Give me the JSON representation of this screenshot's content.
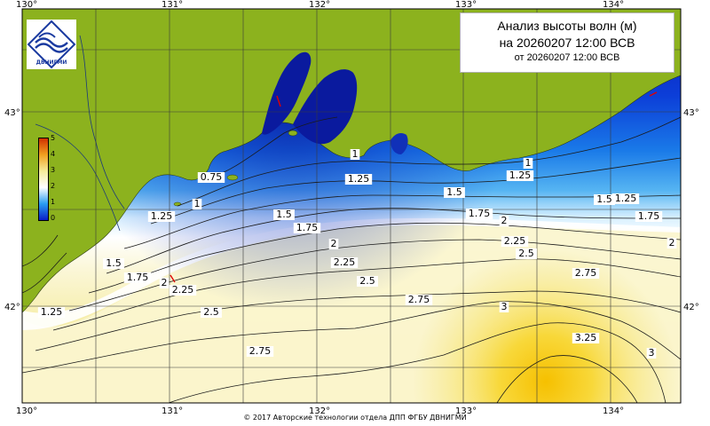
{
  "title": {
    "line1": "Анализ высоты волн (м)",
    "line2": "на 20260207 12:00 ВСВ",
    "line3": "от 20260207 12:00 ВСВ"
  },
  "footer": "© 2017 Авторские технологии отдела ДПП ФГБУ ДВНИГМИ",
  "logo": {
    "text": "ДВНИГМИ"
  },
  "axes": {
    "lon_labels": [
      "130°",
      "131°",
      "132°",
      "133°",
      "134°"
    ],
    "lat_labels": [
      "43°",
      "42°"
    ]
  },
  "colorbar": {
    "labels": [
      "5",
      "4",
      "3",
      "2",
      "1",
      "0"
    ],
    "stops": [
      "#d03000",
      "#f0a020",
      "#f6ec9a",
      "#ffffff",
      "#2a9df0",
      "#0a1ec8"
    ]
  },
  "map": {
    "colors": {
      "land": "#8cb21e",
      "grid": "#3a3a3a",
      "contour": "#1a1a1a"
    },
    "contour_labels": [
      "0.75",
      "1",
      "1",
      "1",
      "1.25",
      "1.25",
      "1.25",
      "1.25",
      "1.5",
      "1.5",
      "1.5",
      "1.5",
      "1.75",
      "1.75",
      "1.75",
      "1.75",
      "2",
      "2",
      "2",
      "2",
      "2.25",
      "2.25",
      "2.25",
      "2.5",
      "2.5",
      "2.5",
      "2.75",
      "2.75",
      "2.75",
      "3",
      "3",
      "3.25",
      "1.25"
    ]
  }
}
